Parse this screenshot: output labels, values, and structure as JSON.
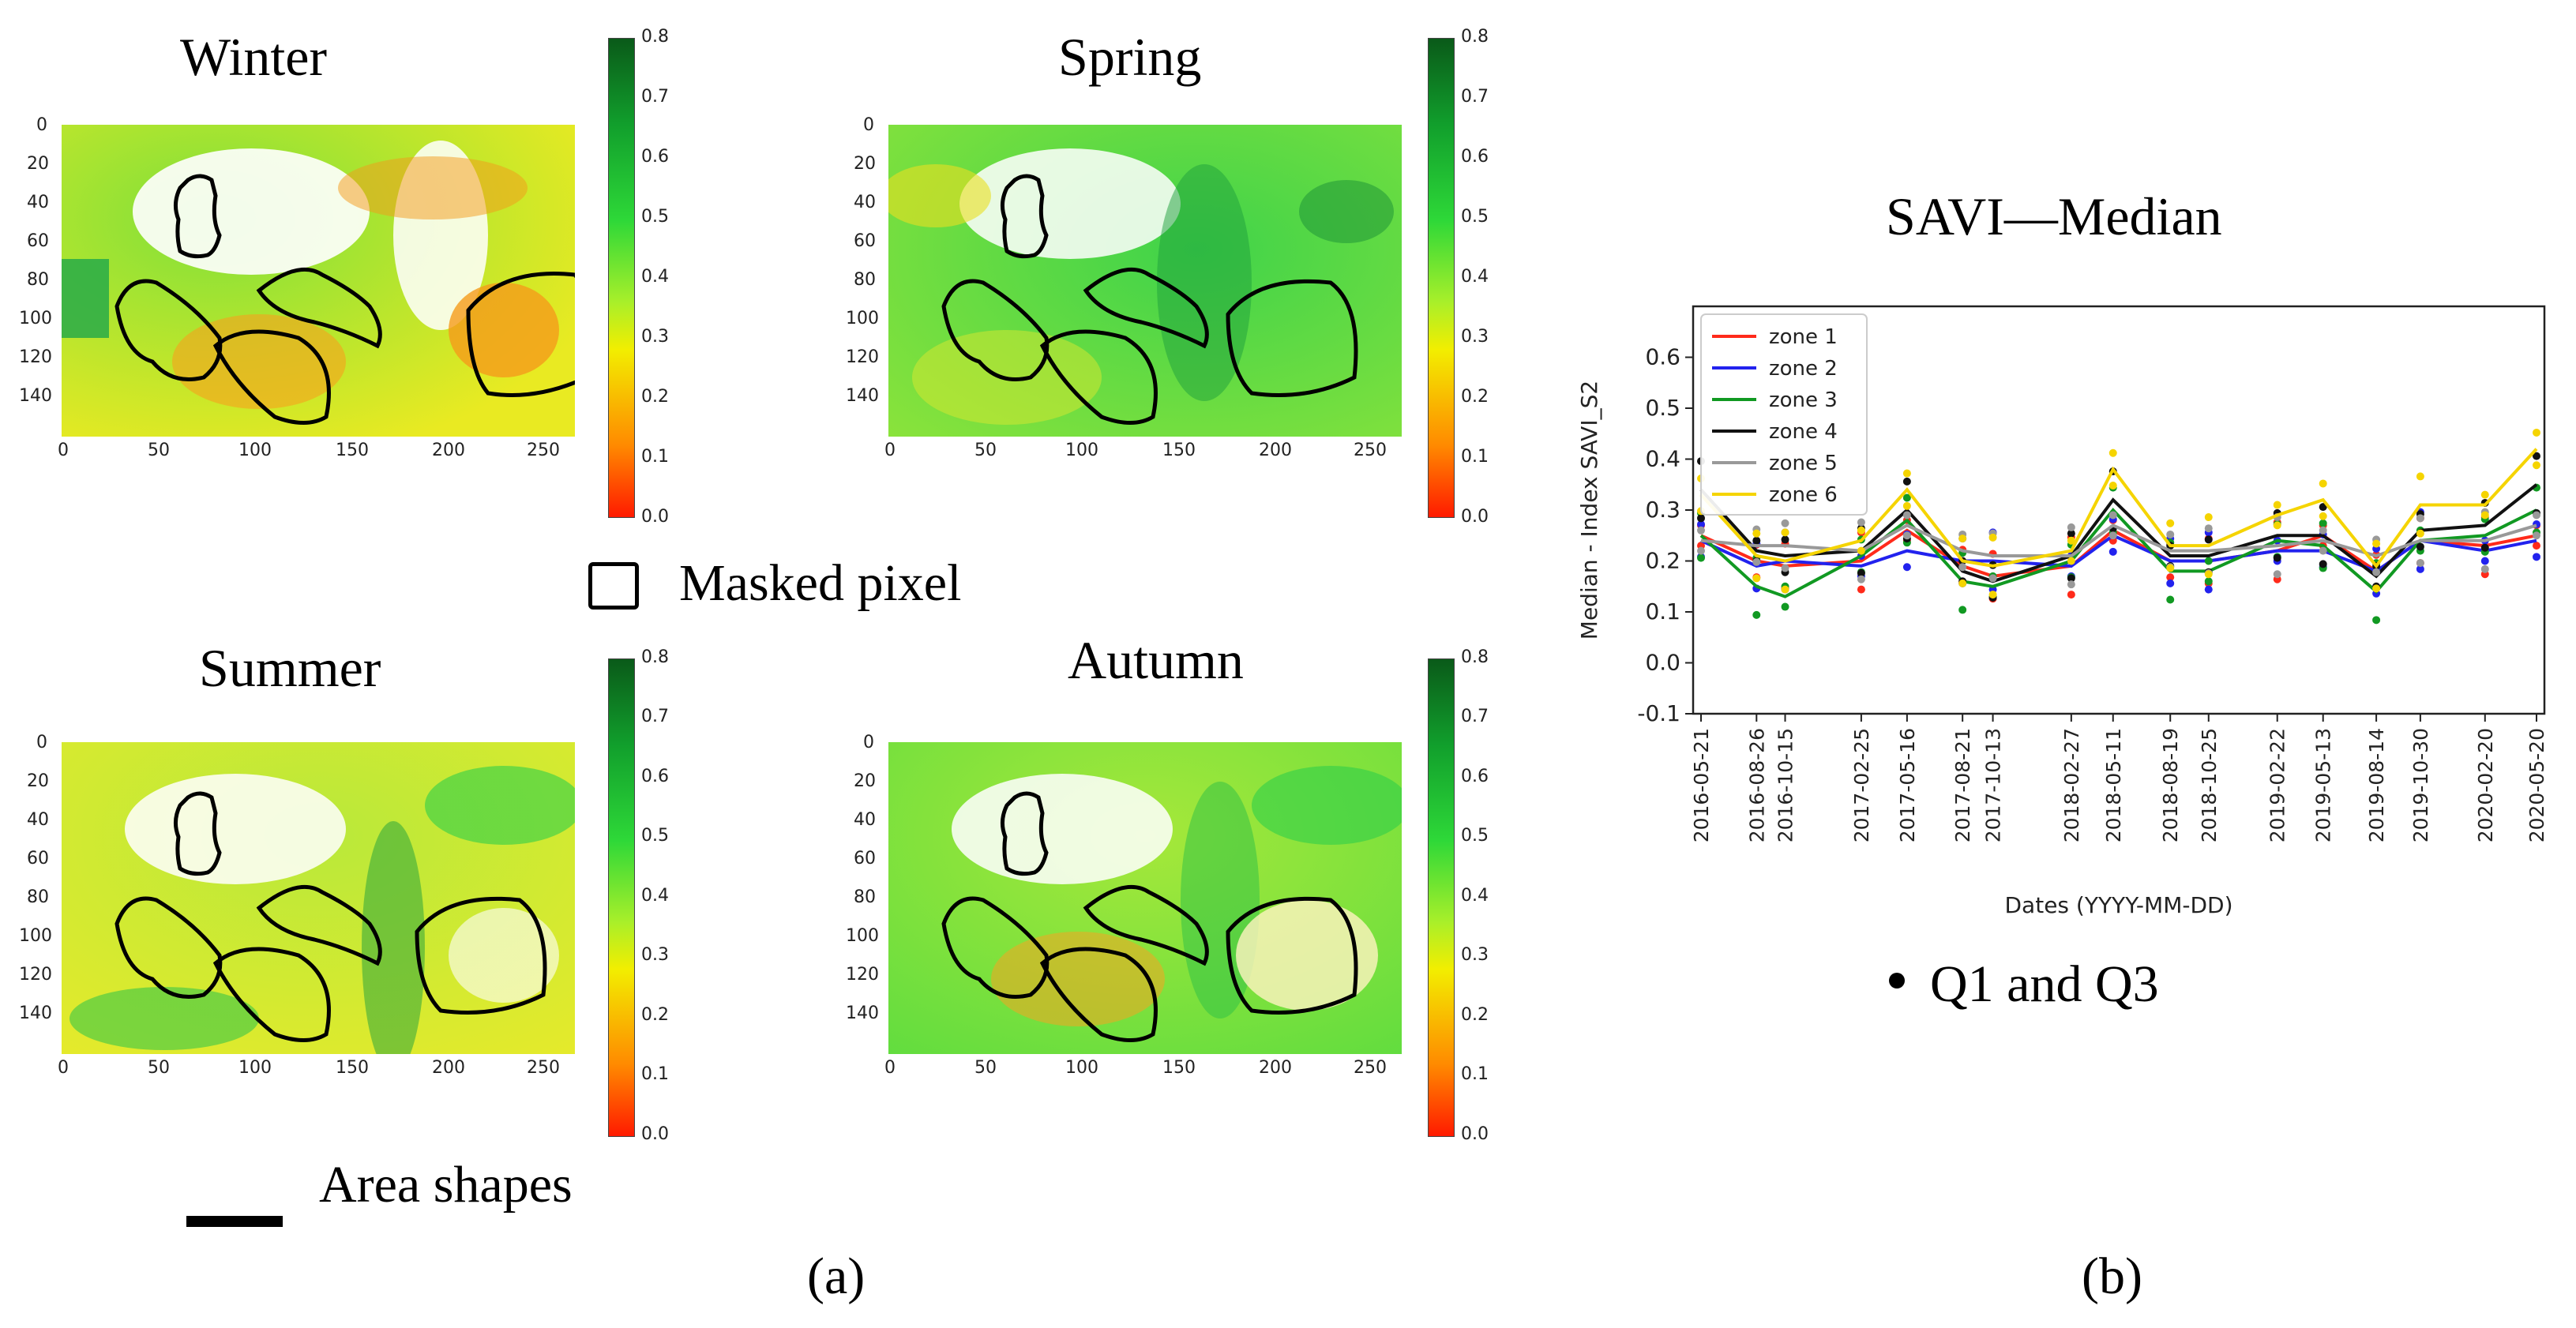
{
  "panel_a": {
    "maps": [
      {
        "title": "Winter"
      },
      {
        "title": "Spring"
      },
      {
        "title": "Summer"
      },
      {
        "title": "Autumn"
      }
    ],
    "x_ticks": [
      "0",
      "50",
      "100",
      "150",
      "200",
      "250"
    ],
    "y_ticks": [
      "0",
      "20",
      "40",
      "60",
      "80",
      "100",
      "120",
      "140"
    ],
    "colorbar_ticks": [
      "0.0",
      "0.1",
      "0.2",
      "0.3",
      "0.4",
      "0.5",
      "0.6",
      "0.7",
      "0.8"
    ],
    "legend_masked": "Masked pixel",
    "legend_area": "Area shapes",
    "label": "(a)",
    "colors": {
      "low": "#ff1a00",
      "mid": "#f2ee00",
      "high": "#0a5a19"
    }
  },
  "panel_b": {
    "title": "SAVI—Median",
    "q_legend": "Q1 and Q3",
    "label": "(b)"
  },
  "chart_data": {
    "type": "line",
    "title": "SAVI—Median",
    "xlabel": "Dates (YYYY-MM-DD)",
    "ylabel": "Median - Index SAVI_S2",
    "ylim": [
      -0.1,
      0.7
    ],
    "yticks": [
      "-0.1",
      "0.0",
      "0.1",
      "0.2",
      "0.3",
      "0.4",
      "0.5",
      "0.6"
    ],
    "categories": [
      "2016-05-21",
      "2016-08-26",
      "2016-10-15",
      "2017-02-25",
      "2017-05-16",
      "2017-08-21",
      "2017-10-13",
      "2018-02-27",
      "2018-05-11",
      "2018-08-19",
      "2018-10-25",
      "2019-02-22",
      "2019-05-13",
      "2019-08-14",
      "2019-10-30",
      "2020-02-20",
      "2020-05-20"
    ],
    "legend_position": "top-left",
    "series": [
      {
        "name": "zone 1",
        "color": "#ff2a1a",
        "values": [
          0.25,
          0.2,
          0.19,
          0.2,
          0.26,
          0.19,
          0.17,
          0.19,
          0.26,
          0.2,
          0.2,
          0.22,
          0.25,
          0.18,
          0.24,
          0.23,
          0.25
        ]
      },
      {
        "name": "zone 2",
        "color": "#2222ee",
        "values": [
          0.24,
          0.19,
          0.2,
          0.19,
          0.22,
          0.2,
          0.2,
          0.19,
          0.25,
          0.2,
          0.2,
          0.22,
          0.22,
          0.18,
          0.24,
          0.22,
          0.24
        ]
      },
      {
        "name": "zone 3",
        "color": "#119922",
        "values": [
          0.25,
          0.15,
          0.13,
          0.21,
          0.28,
          0.16,
          0.15,
          0.2,
          0.3,
          0.18,
          0.18,
          0.24,
          0.23,
          0.14,
          0.24,
          0.25,
          0.3
        ]
      },
      {
        "name": "zone 4",
        "color": "#111111",
        "values": [
          0.34,
          0.22,
          0.21,
          0.22,
          0.3,
          0.18,
          0.16,
          0.21,
          0.32,
          0.21,
          0.21,
          0.25,
          0.25,
          0.17,
          0.26,
          0.27,
          0.35
        ]
      },
      {
        "name": "zone 5",
        "color": "#999999",
        "values": [
          0.24,
          0.23,
          0.23,
          0.22,
          0.27,
          0.22,
          0.21,
          0.21,
          0.27,
          0.22,
          0.22,
          0.23,
          0.24,
          0.21,
          0.24,
          0.24,
          0.27
        ]
      },
      {
        "name": "zone 6",
        "color": "#f5d400",
        "values": [
          0.33,
          0.21,
          0.2,
          0.24,
          0.34,
          0.2,
          0.19,
          0.22,
          0.38,
          0.23,
          0.23,
          0.29,
          0.32,
          0.19,
          0.31,
          0.31,
          0.42
        ]
      }
    ]
  }
}
